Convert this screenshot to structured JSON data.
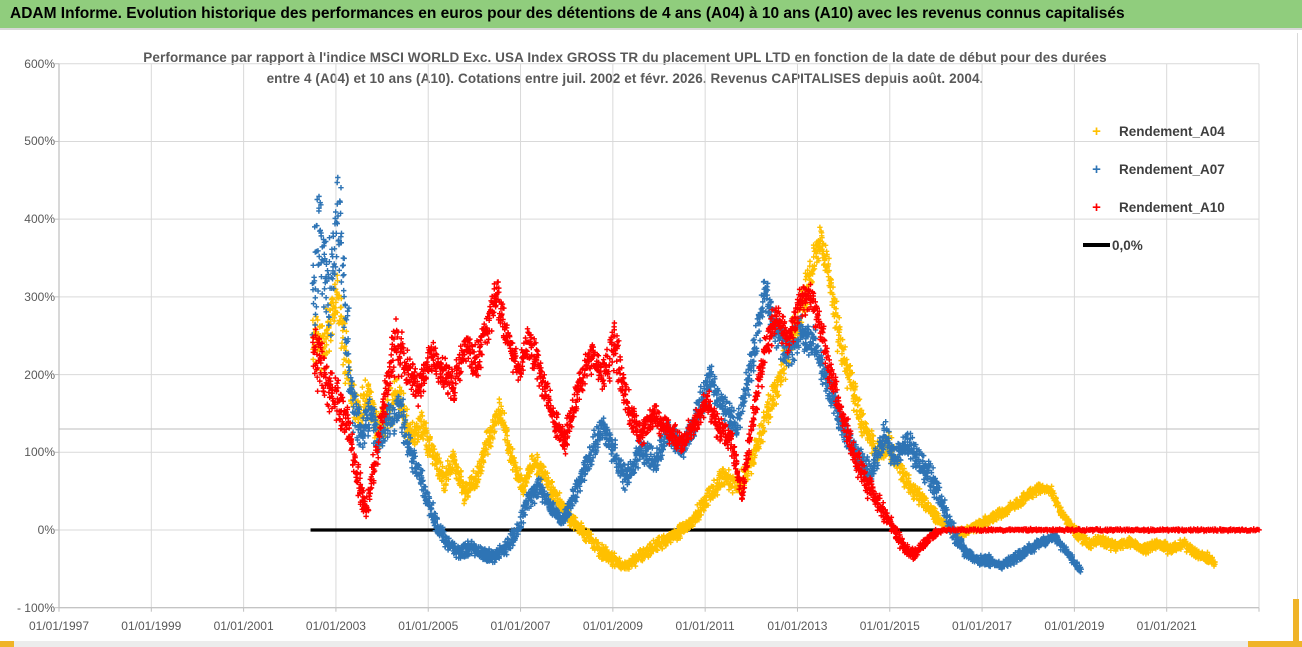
{
  "banner": {
    "text": "ADAM Informe. Evolution historique des performances en euros pour des détentions de 4 ans (A04) à 10 ans (A10) avec les revenus connus capitalisés"
  },
  "chart": {
    "title_line1": "Performance par rapport à l'indice MSCI WORLD Exc. USA Index GROSS TR  du placement UPL LTD en fonction de la date de début pour des durées",
    "title_line2": "entre 4 (A04) et 10 ans (A10). Cotations entre juil. 2002 et févr. 2026. Revenus CAPITALISES depuis août. 2004.",
    "legend": [
      {
        "label": "Rendement_A04",
        "color": "#FFC000",
        "marker": "plus"
      },
      {
        "label": "Rendement_A07",
        "color": "#2E74B5",
        "marker": "plus"
      },
      {
        "label": "Rendement_A10",
        "color": "#FF0000",
        "marker": "plus"
      },
      {
        "label": "0,0%",
        "color": "#000000",
        "marker": "line"
      }
    ]
  },
  "chart_data": {
    "type": "scatter",
    "x_axis": {
      "tick_labels": [
        "01/01/1997",
        "01/01/1999",
        "01/01/2001",
        "01/01/2003",
        "01/01/2005",
        "01/01/2007",
        "01/01/2009",
        "01/01/2011",
        "01/01/2013",
        "01/01/2015",
        "01/01/2017",
        "01/01/2019",
        "01/01/2021"
      ],
      "start_year": 1997,
      "tick_step_years": 2,
      "right_edge_year": 2023
    },
    "y_axis": {
      "tick_labels": [
        "600%",
        "500%",
        "400%",
        "300%",
        "200%",
        "100%",
        "0%",
        "- 100%"
      ],
      "tick_values": [
        600,
        500,
        400,
        300,
        200,
        100,
        0,
        -100
      ],
      "min": -100,
      "max": 600,
      "unit": "%"
    },
    "extra_gridline_value": 130,
    "zero_line": {
      "label": "0,0%",
      "value": 0,
      "color": "#000000",
      "start_year": 2002.45,
      "end_year": 2023
    },
    "anchors_format": "[start_date_as_year_fraction, performance_pct, scatter_halfwidth_pct]",
    "series": [
      {
        "name": "Rendement_A04",
        "color": "#FFC000",
        "marker": "plus",
        "seed": 11,
        "anchors": [
          [
            2002.5,
            250,
            45
          ],
          [
            2002.75,
            235,
            40
          ],
          [
            2003.0,
            300,
            45
          ],
          [
            2003.15,
            260,
            50
          ],
          [
            2003.3,
            195,
            35
          ],
          [
            2003.5,
            150,
            30
          ],
          [
            2003.7,
            180,
            30
          ],
          [
            2003.9,
            125,
            25
          ],
          [
            2004.1,
            150,
            30
          ],
          [
            2004.35,
            175,
            30
          ],
          [
            2004.6,
            120,
            25
          ],
          [
            2004.85,
            135,
            20
          ],
          [
            2005.1,
            100,
            20
          ],
          [
            2005.35,
            60,
            18
          ],
          [
            2005.55,
            90,
            18
          ],
          [
            2005.8,
            45,
            15
          ],
          [
            2006.05,
            70,
            18
          ],
          [
            2006.3,
            115,
            20
          ],
          [
            2006.55,
            155,
            18
          ],
          [
            2006.8,
            95,
            18
          ],
          [
            2007.05,
            55,
            15
          ],
          [
            2007.3,
            90,
            15
          ],
          [
            2007.55,
            65,
            15
          ],
          [
            2007.8,
            40,
            15
          ],
          [
            2008.1,
            15,
            12
          ],
          [
            2008.4,
            -5,
            12
          ],
          [
            2008.7,
            -25,
            12
          ],
          [
            2009.0,
            -38,
            10
          ],
          [
            2009.3,
            -48,
            8
          ],
          [
            2009.6,
            -32,
            10
          ],
          [
            2009.9,
            -22,
            10
          ],
          [
            2010.2,
            -12,
            10
          ],
          [
            2010.5,
            0,
            10
          ],
          [
            2010.8,
            18,
            12
          ],
          [
            2011.1,
            45,
            15
          ],
          [
            2011.4,
            70,
            15
          ],
          [
            2011.7,
            55,
            15
          ],
          [
            2012.0,
            85,
            18
          ],
          [
            2012.3,
            140,
            22
          ],
          [
            2012.6,
            195,
            25
          ],
          [
            2012.9,
            250,
            28
          ],
          [
            2013.2,
            310,
            30
          ],
          [
            2013.5,
            375,
            25
          ],
          [
            2013.7,
            330,
            30
          ],
          [
            2013.9,
            250,
            30
          ],
          [
            2014.1,
            200,
            25
          ],
          [
            2014.4,
            140,
            20
          ],
          [
            2014.7,
            100,
            18
          ],
          [
            2015.0,
            110,
            20
          ],
          [
            2015.3,
            70,
            15
          ],
          [
            2015.6,
            45,
            12
          ],
          [
            2015.9,
            25,
            10
          ],
          [
            2016.15,
            8,
            8
          ],
          [
            2016.5,
            -5,
            8
          ],
          [
            2016.9,
            5,
            8
          ],
          [
            2017.3,
            18,
            8
          ],
          [
            2017.7,
            32,
            8
          ],
          [
            2018.0,
            45,
            8
          ],
          [
            2018.3,
            55,
            8
          ],
          [
            2018.5,
            50,
            8
          ],
          [
            2018.7,
            25,
            8
          ],
          [
            2019.0,
            -2,
            8
          ],
          [
            2019.3,
            -18,
            8
          ],
          [
            2019.6,
            -12,
            8
          ],
          [
            2019.9,
            -22,
            8
          ],
          [
            2020.2,
            -15,
            8
          ],
          [
            2020.5,
            -25,
            8
          ],
          [
            2020.8,
            -18,
            8
          ],
          [
            2021.1,
            -25,
            8
          ],
          [
            2021.35,
            -18,
            8
          ],
          [
            2021.6,
            -30,
            8
          ],
          [
            2021.85,
            -35,
            8
          ],
          [
            2022.05,
            -43,
            6
          ]
        ]
      },
      {
        "name": "Rendement_A07",
        "color": "#2E74B5",
        "marker": "plus",
        "seed": 22,
        "anchors": [
          [
            2002.5,
            330,
            90
          ],
          [
            2002.62,
            400,
            110
          ],
          [
            2002.75,
            330,
            80
          ],
          [
            2002.9,
            310,
            70
          ],
          [
            2003.05,
            420,
            100
          ],
          [
            2003.2,
            280,
            70
          ],
          [
            2003.35,
            170,
            45
          ],
          [
            2003.55,
            120,
            30
          ],
          [
            2003.75,
            150,
            30
          ],
          [
            2003.95,
            115,
            25
          ],
          [
            2004.15,
            140,
            28
          ],
          [
            2004.4,
            155,
            28
          ],
          [
            2004.65,
            95,
            22
          ],
          [
            2004.9,
            55,
            18
          ],
          [
            2005.15,
            10,
            15
          ],
          [
            2005.4,
            -15,
            12
          ],
          [
            2005.65,
            -30,
            10
          ],
          [
            2005.9,
            -22,
            12
          ],
          [
            2006.15,
            -30,
            10
          ],
          [
            2006.4,
            -35,
            10
          ],
          [
            2006.65,
            -25,
            12
          ],
          [
            2006.9,
            -5,
            12
          ],
          [
            2007.15,
            35,
            15
          ],
          [
            2007.4,
            58,
            15
          ],
          [
            2007.65,
            30,
            12
          ],
          [
            2007.9,
            10,
            12
          ],
          [
            2008.2,
            50,
            18
          ],
          [
            2008.5,
            95,
            22
          ],
          [
            2008.8,
            135,
            22
          ],
          [
            2009.05,
            95,
            20
          ],
          [
            2009.3,
            65,
            18
          ],
          [
            2009.6,
            105,
            20
          ],
          [
            2009.9,
            88,
            18
          ],
          [
            2010.2,
            125,
            20
          ],
          [
            2010.5,
            105,
            18
          ],
          [
            2010.8,
            145,
            20
          ],
          [
            2011.1,
            195,
            25
          ],
          [
            2011.4,
            160,
            22
          ],
          [
            2011.7,
            130,
            20
          ],
          [
            2012.0,
            215,
            28
          ],
          [
            2012.3,
            305,
            28
          ],
          [
            2012.55,
            255,
            28
          ],
          [
            2012.8,
            225,
            25
          ],
          [
            2013.1,
            255,
            25
          ],
          [
            2013.4,
            235,
            25
          ],
          [
            2013.7,
            180,
            22
          ],
          [
            2014.0,
            130,
            20
          ],
          [
            2014.3,
            95,
            18
          ],
          [
            2014.6,
            70,
            18
          ],
          [
            2014.9,
            125,
            22
          ],
          [
            2015.1,
            90,
            18
          ],
          [
            2015.35,
            115,
            20
          ],
          [
            2015.6,
            90,
            25
          ],
          [
            2015.9,
            70,
            25
          ],
          [
            2016.1,
            40,
            20
          ],
          [
            2016.35,
            0,
            15
          ],
          [
            2016.6,
            -25,
            10
          ],
          [
            2016.9,
            -40,
            8
          ],
          [
            2017.1,
            -38,
            8
          ],
          [
            2017.4,
            -46,
            7
          ],
          [
            2017.7,
            -36,
            8
          ],
          [
            2018.0,
            -26,
            8
          ],
          [
            2018.3,
            -16,
            7
          ],
          [
            2018.55,
            -8,
            6
          ],
          [
            2018.8,
            -26,
            7
          ],
          [
            2019.0,
            -42,
            6
          ],
          [
            2019.15,
            -52,
            5
          ]
        ]
      },
      {
        "name": "Rendement_A10",
        "color": "#FF0000",
        "marker": "plus",
        "seed": 33,
        "flat_zero_from_year": 2016.15,
        "anchors": [
          [
            2002.5,
            235,
            45
          ],
          [
            2002.75,
            195,
            40
          ],
          [
            2003.0,
            170,
            35
          ],
          [
            2003.25,
            135,
            30
          ],
          [
            2003.45,
            70,
            25
          ],
          [
            2003.65,
            25,
            20
          ],
          [
            2003.85,
            85,
            30
          ],
          [
            2004.05,
            170,
            35
          ],
          [
            2004.3,
            240,
            45
          ],
          [
            2004.55,
            205,
            30
          ],
          [
            2004.8,
            180,
            25
          ],
          [
            2005.05,
            225,
            25
          ],
          [
            2005.3,
            205,
            25
          ],
          [
            2005.55,
            185,
            25
          ],
          [
            2005.8,
            235,
            25
          ],
          [
            2006.05,
            215,
            25
          ],
          [
            2006.3,
            265,
            30
          ],
          [
            2006.5,
            305,
            30
          ],
          [
            2006.7,
            250,
            28
          ],
          [
            2006.95,
            205,
            25
          ],
          [
            2007.2,
            240,
            25
          ],
          [
            2007.45,
            200,
            25
          ],
          [
            2007.7,
            150,
            22
          ],
          [
            2007.95,
            110,
            20
          ],
          [
            2008.2,
            170,
            25
          ],
          [
            2008.5,
            225,
            25
          ],
          [
            2008.8,
            200,
            22
          ],
          [
            2009.05,
            240,
            45
          ],
          [
            2009.3,
            165,
            25
          ],
          [
            2009.6,
            120,
            20
          ],
          [
            2009.9,
            148,
            20
          ],
          [
            2010.2,
            128,
            18
          ],
          [
            2010.5,
            110,
            18
          ],
          [
            2010.8,
            140,
            20
          ],
          [
            2011.05,
            165,
            20
          ],
          [
            2011.3,
            130,
            18
          ],
          [
            2011.55,
            115,
            18
          ],
          [
            2011.8,
            48,
            18
          ],
          [
            2012.05,
            145,
            25
          ],
          [
            2012.3,
            235,
            28
          ],
          [
            2012.55,
            275,
            25
          ],
          [
            2012.8,
            245,
            25
          ],
          [
            2013.05,
            290,
            25
          ],
          [
            2013.25,
            305,
            22
          ],
          [
            2013.5,
            260,
            25
          ],
          [
            2013.7,
            205,
            22
          ],
          [
            2013.95,
            150,
            22
          ],
          [
            2014.2,
            100,
            20
          ],
          [
            2014.5,
            60,
            18
          ],
          [
            2014.8,
            30,
            15
          ],
          [
            2015.05,
            5,
            12
          ],
          [
            2015.3,
            -22,
            10
          ],
          [
            2015.55,
            -32,
            8
          ],
          [
            2015.8,
            -12,
            8
          ],
          [
            2016.0,
            -4,
            5
          ],
          [
            2016.15,
            0,
            2
          ],
          [
            2023.0,
            0,
            1.8
          ]
        ]
      }
    ]
  }
}
